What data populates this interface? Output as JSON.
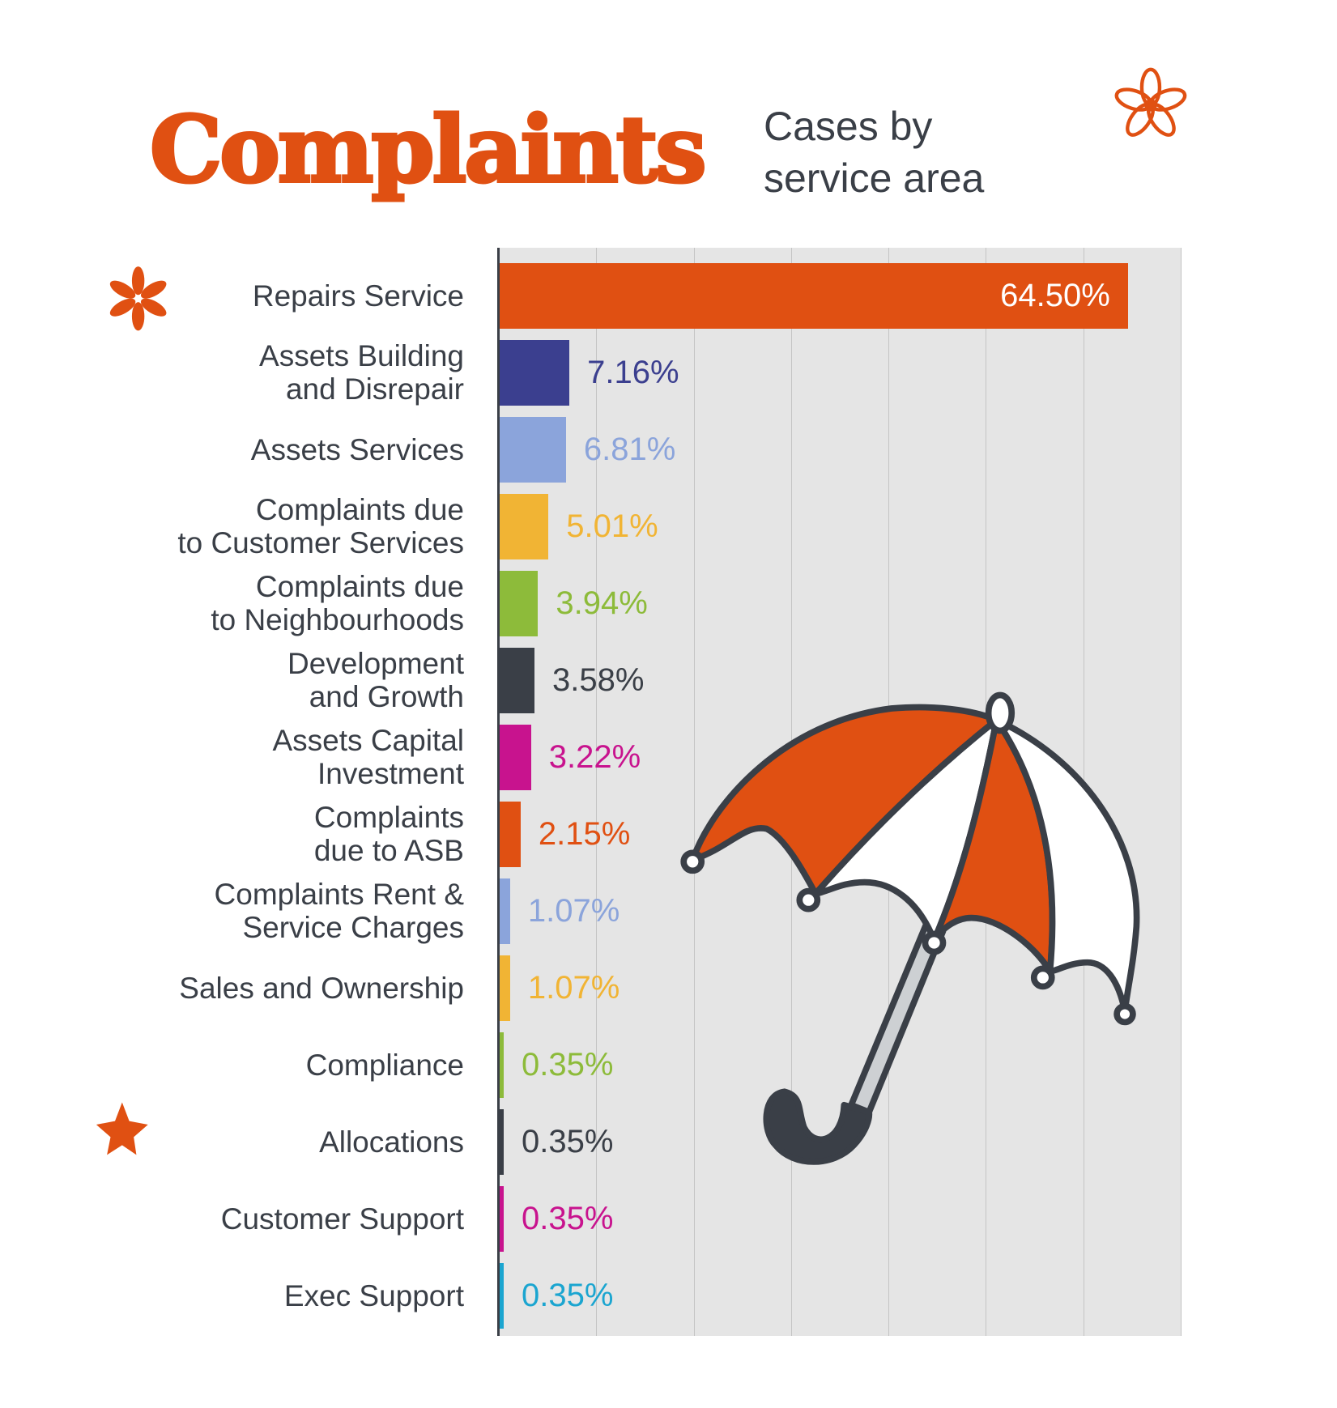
{
  "header": {
    "title": "Complaints",
    "subtitle_line1": "Cases by",
    "subtitle_line2": "service area"
  },
  "icons": [
    "flower-outline-icon",
    "asterisk-flower-icon",
    "star-icon",
    "umbrella-illustration"
  ],
  "chart_data": {
    "type": "bar",
    "orientation": "horizontal",
    "title": "Complaints",
    "subtitle": "Cases by service area",
    "xlim": [
      0,
      70
    ],
    "grid": true,
    "unit": "%",
    "categories": [
      "Repairs Service",
      "Assets Building\nand Disrepair",
      "Assets Services",
      "Complaints due\nto Customer Services",
      "Complaints due\nto Neighbourhoods",
      "Development\nand Growth",
      "Assets Capital\nInvestment",
      "Complaints\ndue to ASB",
      "Complaints Rent &\nService Charges",
      "Sales and Ownership",
      "Compliance",
      "Allocations",
      "Customer Support",
      "Exec Support"
    ],
    "values": [
      64.5,
      7.16,
      6.81,
      5.01,
      3.94,
      3.58,
      3.22,
      2.15,
      1.07,
      1.07,
      0.35,
      0.35,
      0.35,
      0.35
    ],
    "labels": [
      "64.50%",
      "7.16%",
      "6.81%",
      "5.01%",
      "3.94%",
      "3.58%",
      "3.22%",
      "2.15%",
      "1.07%",
      "1.07%",
      "0.35%",
      "0.35%",
      "0.35%",
      "0.35%"
    ],
    "colors": [
      "#E05012",
      "#3B3F8F",
      "#8BA4DB",
      "#F1B434",
      "#8DBB3A",
      "#3A3F47",
      "#C8138E",
      "#E05012",
      "#8BA4DB",
      "#F1B434",
      "#8DBB3A",
      "#3A3F47",
      "#C8138E",
      "#1BA5D0"
    ]
  },
  "colors": {
    "accent": "#E05012",
    "text": "#3A3F47",
    "plot_bg": "#E5E5E5"
  }
}
